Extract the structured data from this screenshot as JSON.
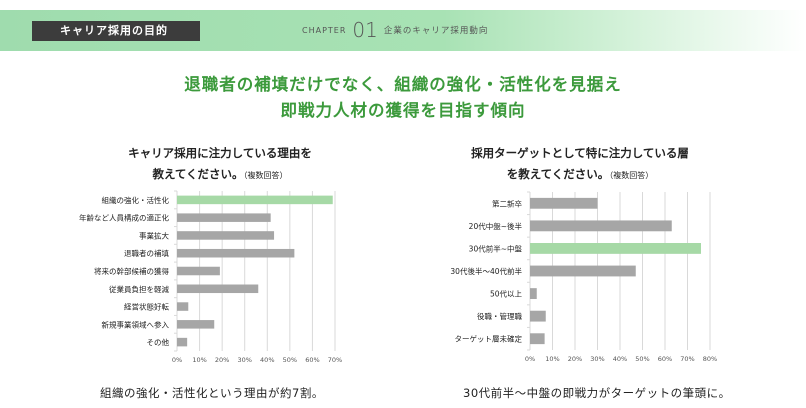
{
  "header": {
    "tag": "キャリア採用の目的",
    "chapter_label": "CHAPTER",
    "chapter_num": "01",
    "chapter_title": "企業のキャリア採用動向"
  },
  "headline": {
    "line1": "退職者の補填だけでなく、組織の強化・活性化を見据え",
    "line2": "即戦力人材の獲得を目指す傾向"
  },
  "colors": {
    "highlight": "#a6d9a6",
    "bar": "#a6a6a6",
    "title": "#3c9a3c"
  },
  "chart_data": [
    {
      "type": "bar",
      "orientation": "horizontal",
      "title_line1": "キャリア採用に注力している理由を",
      "title_line2": "教えてください。",
      "note": "（複数回答）",
      "categories": [
        "組織の強化・活性化",
        "年齢など人員構成の適正化",
        "事業拡大",
        "退職者の補填",
        "将来の幹部候補の獲得",
        "従業員負担を軽減",
        "経営状態好転",
        "新規事業領域へ参入",
        "その他"
      ],
      "values": [
        69,
        41.5,
        43,
        52,
        19,
        36,
        5,
        16.5,
        4.5
      ],
      "highlight_index": 0,
      "xlim": [
        0,
        70
      ],
      "xticks": [
        "0%",
        "10%",
        "20%",
        "30%",
        "40%",
        "50%",
        "60%",
        "70%"
      ],
      "grid": true,
      "caption": "組織の強化・活性化という理由が約7割。"
    },
    {
      "type": "bar",
      "orientation": "horizontal",
      "title_line1": "採用ターゲットとして特に注力している層",
      "title_line2": "を教えてください。",
      "note": "（複数回答）",
      "categories": [
        "第二新卒",
        "20代中盤~後半",
        "30代前半~中盤",
        "30代後半～40代前半",
        "50代以上",
        "役職・管理職",
        "ターゲット層未確定"
      ],
      "values": [
        30,
        63,
        76,
        47,
        3,
        7,
        6.5
      ],
      "highlight_index": 2,
      "xlim": [
        0,
        80
      ],
      "xticks": [
        "0%",
        "10%",
        "20%",
        "30%",
        "40%",
        "50%",
        "60%",
        "70%",
        "80%"
      ],
      "grid": true,
      "caption": "30代前半～中盤の即戦力がターゲットの筆頭に。"
    }
  ]
}
